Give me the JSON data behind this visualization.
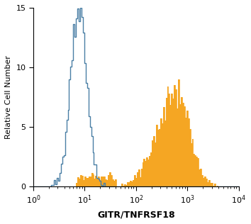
{
  "xlabel": "GITR/TNFRSF18",
  "ylabel": "Relative Cell Number",
  "xlim_log": [
    0,
    4
  ],
  "ylim": [
    0,
    15
  ],
  "yticks": [
    0,
    5,
    10,
    15
  ],
  "blue_color": "#4a7fa5",
  "orange_color": "#f5a623",
  "background_color": "#ffffff",
  "figsize": [
    3.54,
    3.16
  ],
  "dpi": 100
}
